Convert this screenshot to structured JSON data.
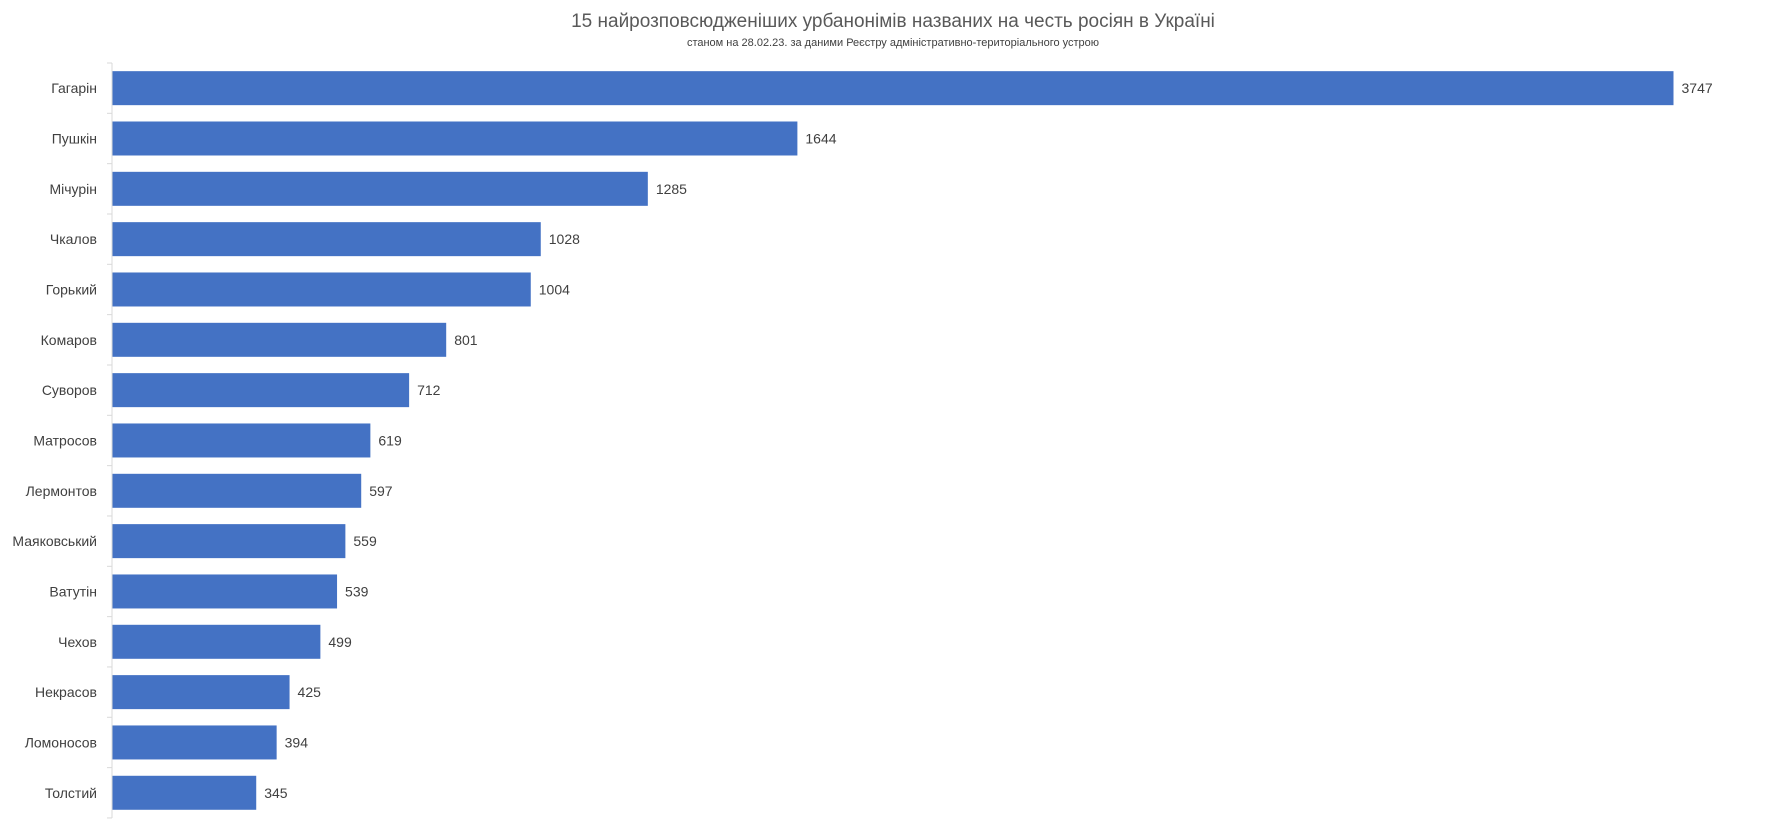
{
  "chart_data": {
    "type": "bar",
    "orientation": "horizontal",
    "title": "15 найрозповсюдженіших урбанонімів названих на честь росіян в Україні",
    "subtitle": "станом на 28.02.23. за даними Реєстру адміністративно-територіального устрою",
    "categories": [
      "Гагарін",
      "Пушкін",
      "Мічурін",
      "Чкалов",
      "Горький",
      "Комаров",
      "Суворов",
      "Матросов",
      "Лермонтов",
      "Маяковський",
      "Ватутін",
      "Чехов",
      "Некрасов",
      "Ломоносов",
      "Толстий"
    ],
    "values": [
      3747,
      1644,
      1285,
      1028,
      1004,
      801,
      712,
      619,
      597,
      559,
      539,
      499,
      425,
      394,
      345
    ],
    "data_labels": [
      "3747",
      "1644",
      "1285",
      "1028",
      "1004",
      "801",
      "712",
      "619",
      "597",
      "559",
      "539",
      "499",
      "425",
      "394",
      "345"
    ],
    "xlim": [
      0,
      3747
    ],
    "grid": false,
    "legend": "none",
    "bar_color": "#4472C4",
    "axis_color": "#D9D9D9"
  }
}
